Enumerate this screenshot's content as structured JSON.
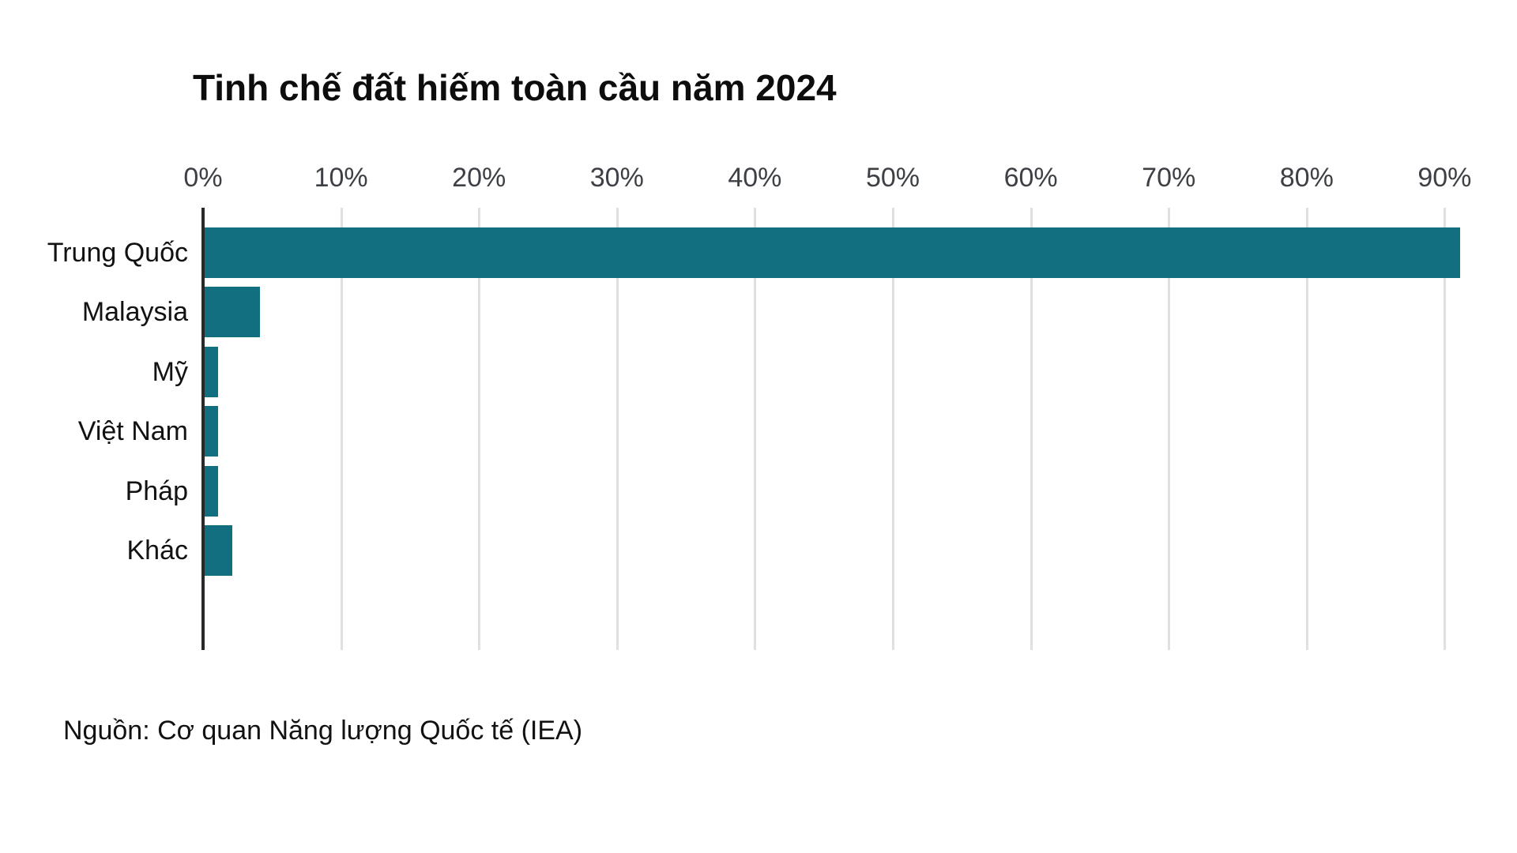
{
  "title": "Tinh chế đất hiếm toàn cầu năm 2024",
  "source": "Nguồn: Cơ quan Năng lượng Quốc tế (IEA)",
  "colors": {
    "bar": "#126f7f",
    "axis_line": "#27292b",
    "gridline": "#e0e0e0",
    "tick_label": "#3d4045",
    "category_label": "#121212",
    "background": "#ffffff"
  },
  "chart_data": {
    "type": "bar",
    "orientation": "horizontal",
    "title": "Tinh chế đất hiếm toàn cầu năm 2024",
    "categories": [
      "Trung Quốc",
      "Malaysia",
      "Mỹ",
      "Việt Nam",
      "Pháp",
      "Khác"
    ],
    "values": [
      91,
      4,
      1,
      1,
      1,
      2
    ],
    "unit": "%",
    "xlabel": "",
    "ylabel": "",
    "xlim": [
      0,
      93
    ],
    "grid": true,
    "x_ticks": [
      {
        "label": "0%",
        "v": 0
      },
      {
        "label": "10%",
        "v": 10
      },
      {
        "label": "20%",
        "v": 20
      },
      {
        "label": "30%",
        "v": 30
      },
      {
        "label": "40%",
        "v": 40
      },
      {
        "label": "50%",
        "v": 50
      },
      {
        "label": "60%",
        "v": 60
      },
      {
        "label": "70%",
        "v": 70
      },
      {
        "label": "80%",
        "v": 80
      },
      {
        "label": "90%",
        "v": 90
      }
    ]
  }
}
